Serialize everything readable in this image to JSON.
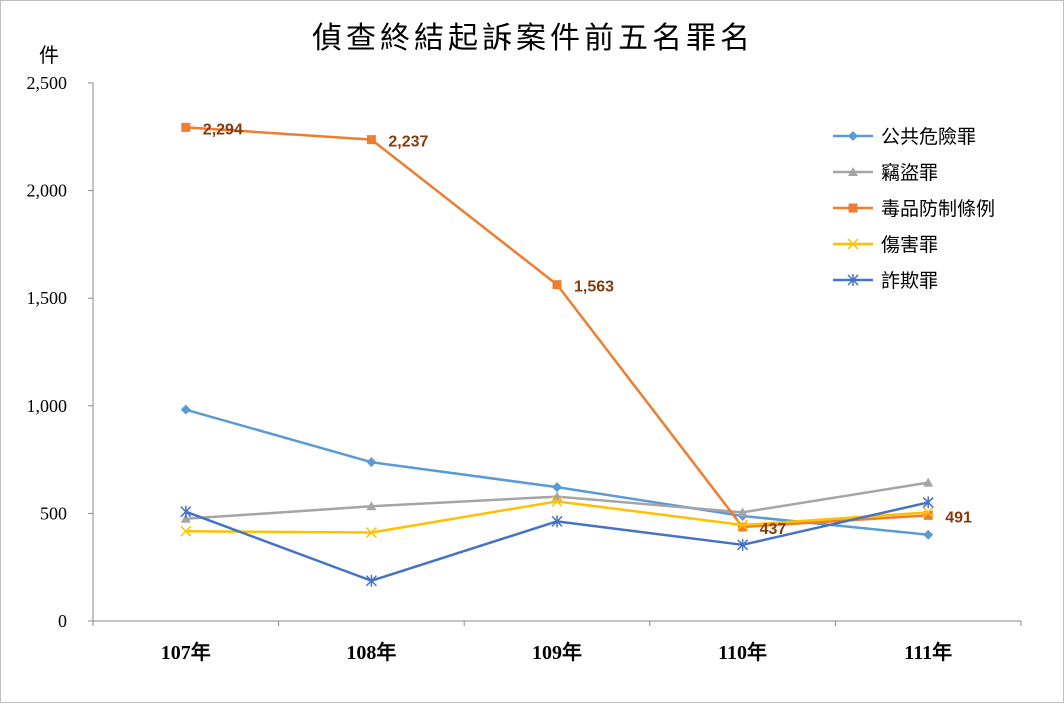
{
  "chart_data": {
    "type": "line",
    "title": "偵查終結起訴案件前五名罪名",
    "ylabel": "件",
    "xlabel": "",
    "categories": [
      "107年",
      "108年",
      "109年",
      "110年",
      "111年"
    ],
    "ylim": [
      0,
      2500
    ],
    "yticks": [
      0,
      500,
      1000,
      1500,
      2000,
      2500
    ],
    "ytick_labels": [
      "0",
      "500",
      "1,000",
      "1,500",
      "2,000",
      "2,500"
    ],
    "grid": false,
    "legend_position": "top-right",
    "series": [
      {
        "name": "公共危險罪",
        "values": [
          982,
          738,
          622,
          488,
          401
        ],
        "color": "#5b9bd5",
        "marker": "diamond"
      },
      {
        "name": "竊盜罪",
        "values": [
          475,
          533,
          578,
          505,
          643
        ],
        "color": "#a5a5a5",
        "marker": "triangle"
      },
      {
        "name": "毒品防制條例",
        "values": [
          2294,
          2237,
          1563,
          437,
          491
        ],
        "color": "#ed7d31",
        "marker": "square",
        "data_labels": [
          "2,294",
          "2,237",
          "1,563",
          "437",
          "491"
        ]
      },
      {
        "name": "傷害罪",
        "values": [
          417,
          411,
          556,
          446,
          505
        ],
        "color": "#ffc000",
        "marker": "x"
      },
      {
        "name": "詐欺罪",
        "values": [
          508,
          187,
          463,
          354,
          551
        ],
        "color": "#4472c4",
        "marker": "star"
      }
    ]
  }
}
